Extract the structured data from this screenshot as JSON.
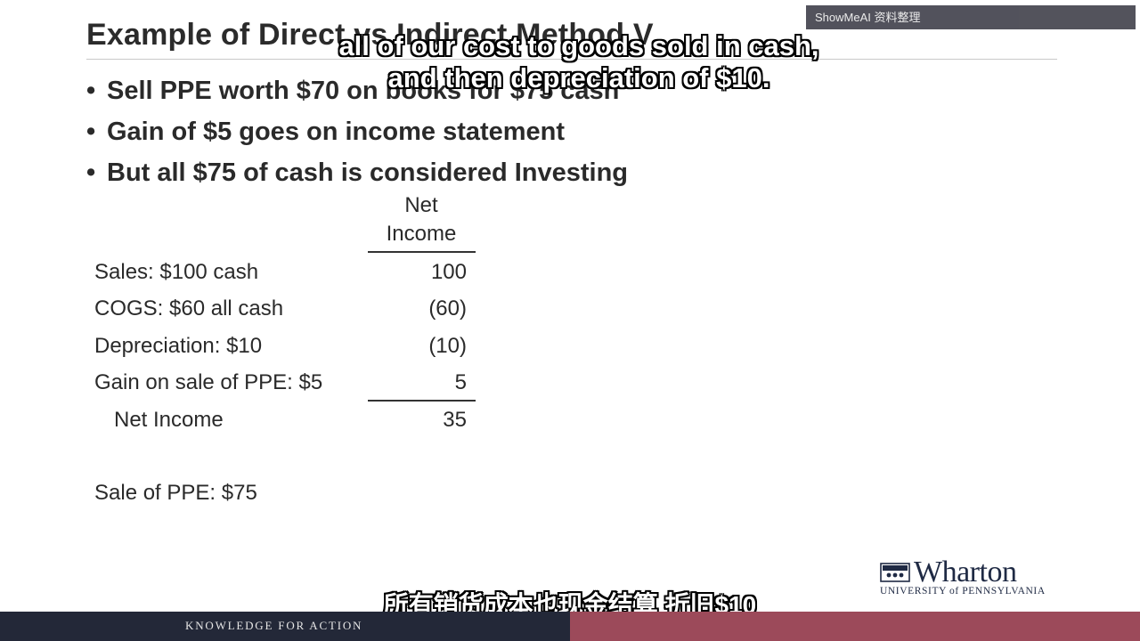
{
  "slide": {
    "title": "Example of Direct vs Indirect Method V",
    "bullets": [
      "Sell PPE worth $70 on books for $75 cash",
      "Gain of $5 goes on income statement",
      "But all $75 of cash is considered Investing"
    ],
    "bullet_glyph": "•",
    "table": {
      "header_line1": "Net",
      "header_line2": "Income",
      "rows": [
        {
          "label": "Sales: $100 cash",
          "value": "100"
        },
        {
          "label": "COGS: $60 all cash",
          "value": "(60)"
        },
        {
          "label": "Depreciation: $10",
          "value": "(10)"
        },
        {
          "label": "Gain on sale of PPE: $5",
          "value": "5"
        }
      ],
      "total": {
        "label": "Net Income",
        "value": "35"
      }
    },
    "note": "Sale of PPE: $75"
  },
  "captions": {
    "english_line1": "all of our cost to goods sold in cash,",
    "english_line2": "and then depreciation of $10.",
    "chinese": "所有销货成本也现金结算 折旧$10"
  },
  "watermark": "ShowMeAI 资料整理",
  "logo": {
    "wordmark": "Wharton",
    "subtitle": "UNIVERSITY of PENNSYLVANIA",
    "icon": "penn-shield-icon"
  },
  "footer": {
    "tagline": "KNOWLEDGE FOR ACTION"
  },
  "colors": {
    "footer_left": "#232838",
    "footer_right": "#9c4a5a",
    "brand_navy": "#1f2a44"
  }
}
